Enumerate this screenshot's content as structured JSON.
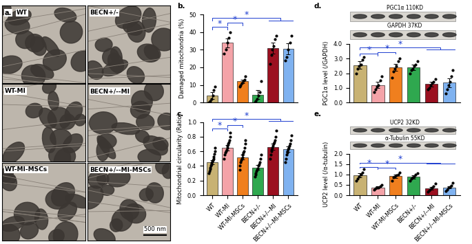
{
  "micrographs": {
    "label": "a.",
    "panels": [
      "WT",
      "BECN+/-",
      "WT-MI",
      "BECN+/--MI",
      "WT-MI-MSCs",
      "BECN+/--MI-MSCs"
    ],
    "scale_bar": "500 nm"
  },
  "chart_data": [
    {
      "type": "bar",
      "title": "b.",
      "y_label": "Damaged mitochondria (%)",
      "tick_labels": "y",
      "values": [
        4,
        34,
        12,
        4.5,
        31,
        30.5
      ],
      "errors": [
        2,
        2.5,
        1,
        2.5,
        3,
        3
      ],
      "points": [
        [
          0,
          1,
          2,
          4,
          7,
          9
        ],
        [
          28,
          30,
          34,
          37,
          40
        ],
        [
          9,
          10,
          11,
          12,
          13,
          15
        ],
        [
          0,
          1,
          2,
          4,
          6,
          12
        ],
        [
          22,
          27,
          30,
          32,
          36,
          38
        ],
        [
          24,
          26,
          30,
          34,
          38
        ]
      ],
      "colors": [
        "#c8b273",
        "#f4a3a8",
        "#f07f1e",
        "#2fa84f",
        "#9b1020",
        "#7fb2f0"
      ],
      "ylim": [
        0,
        50
      ],
      "yticks": [
        0,
        10,
        20,
        30,
        40,
        50
      ],
      "significance": [
        {
          "label": "*",
          "from": [
            0
          ],
          "to": [
            1
          ]
        },
        {
          "label": "*",
          "from": [
            1
          ],
          "to": [
            2
          ]
        },
        {
          "label": "*",
          "from": [
            0
          ],
          "to": [
            4,
            5
          ]
        }
      ]
    },
    {
      "type": "bar",
      "title": "c.",
      "y_label": "Mitochondrial circularity (Ratio)",
      "categories": [
        "WT",
        "WT-MI",
        "WT-MI-MSCs",
        "BECN+/-",
        "BECN+/--MI",
        "BECN+/--MI-MSCs"
      ],
      "values": [
        0.45,
        0.65,
        0.52,
        0.38,
        0.66,
        0.63
      ],
      "errors": [
        0.03,
        0.04,
        0.03,
        0.03,
        0.04,
        0.04
      ],
      "points": [
        [
          0.3,
          0.33,
          0.36,
          0.38,
          0.4,
          0.42,
          0.44,
          0.46,
          0.48,
          0.5,
          0.53,
          0.56,
          0.6,
          0.65
        ],
        [
          0.5,
          0.55,
          0.58,
          0.6,
          0.62,
          0.65,
          0.68,
          0.7,
          0.72,
          0.75,
          0.8,
          0.85
        ],
        [
          0.35,
          0.4,
          0.45,
          0.48,
          0.5,
          0.52,
          0.55,
          0.58,
          0.6,
          0.65,
          0.7,
          0.75
        ],
        [
          0.25,
          0.28,
          0.3,
          0.33,
          0.35,
          0.37,
          0.4,
          0.42,
          0.45,
          0.5,
          0.55
        ],
        [
          0.5,
          0.55,
          0.6,
          0.62,
          0.65,
          0.68,
          0.7,
          0.72,
          0.75,
          0.8,
          0.88
        ],
        [
          0.45,
          0.5,
          0.55,
          0.58,
          0.6,
          0.63,
          0.65,
          0.68,
          0.7,
          0.75,
          0.82
        ]
      ],
      "colors": [
        "#c8b273",
        "#f4a3a8",
        "#f07f1e",
        "#2fa84f",
        "#9b1020",
        "#7fb2f0"
      ],
      "ylim": [
        0,
        1.0
      ],
      "yticks": [
        {
          "value": 0,
          "label": "0.0"
        },
        {
          "value": 0.2,
          "label": "0.2"
        },
        {
          "value": 0.4,
          "label": "0.4"
        },
        {
          "value": 0.6,
          "label": "0.6"
        },
        {
          "value": 0.8,
          "label": "0.8"
        },
        {
          "value": 1.0,
          "label": "1.0"
        }
      ],
      "significance": [
        {
          "label": "*",
          "from": [
            0
          ],
          "to": [
            1
          ]
        },
        {
          "label": "*",
          "from": [
            1
          ],
          "to": [
            2
          ]
        },
        {
          "label": "*",
          "from": [
            0
          ],
          "to": [
            4,
            5
          ]
        }
      ]
    },
    {
      "type": "bar",
      "title": "d.",
      "y_label": "PGC1α level (/GAPDH)",
      "tick_labels": "y",
      "blots": [
        "PGC1α 110KD",
        "GAPDH 37KD"
      ],
      "values": [
        2.55,
        1.2,
        2.4,
        2.4,
        1.25,
        1.35
      ],
      "errors": [
        0.25,
        0.2,
        0.25,
        0.2,
        0.15,
        0.3
      ],
      "points": [
        [
          2.0,
          2.3,
          2.5,
          2.6,
          2.9,
          3.1
        ],
        [
          0.7,
          0.9,
          1.1,
          1.2,
          1.5,
          1.8
        ],
        [
          1.7,
          2.1,
          2.3,
          2.5,
          2.8,
          3.0
        ],
        [
          2.0,
          2.2,
          2.3,
          2.5,
          2.6,
          2.8
        ],
        [
          0.9,
          1.0,
          1.2,
          1.3,
          1.4,
          1.6
        ],
        [
          0.6,
          0.9,
          1.2,
          1.4,
          1.8,
          2.2
        ]
      ],
      "colors": [
        "#c8b273",
        "#f4a3a8",
        "#f07f1e",
        "#2fa84f",
        "#9b1020",
        "#7fb2f0"
      ],
      "ylim": [
        0,
        4.0
      ],
      "yticks": [
        {
          "value": 0,
          "label": "0.0"
        },
        {
          "value": 1.0,
          "label": "1.0"
        },
        {
          "value": 2.0,
          "label": "2.0"
        },
        {
          "value": 3.0,
          "label": "3.0"
        },
        {
          "value": 4.0,
          "label": "4.0"
        }
      ],
      "significance": [
        {
          "label": "*",
          "from": [
            0
          ],
          "to": [
            1
          ]
        },
        {
          "label": "*",
          "from": [
            1
          ],
          "to": [
            2
          ]
        },
        {
          "label": "*",
          "from": [
            0
          ],
          "to": [
            4,
            5
          ]
        }
      ]
    },
    {
      "type": "bar",
      "title": "e.",
      "y_label": "UCP2 level (/α-tubulin)",
      "blots": [
        "UCP2 32KD",
        "α-Tubulin 55KD"
      ],
      "categories": [
        "WT",
        "WT-MI",
        "WT-MI-MSCs",
        "BECN+/-",
        "BECN+/--MI",
        "BECN+/--MI-MSCs"
      ],
      "values": [
        0.95,
        0.38,
        0.92,
        0.88,
        0.33,
        0.38
      ],
      "errors": [
        0.1,
        0.04,
        0.08,
        0.07,
        0.07,
        0.06
      ],
      "points": [
        [
          0.7,
          0.8,
          0.9,
          1.0,
          1.1,
          1.25
        ],
        [
          0.28,
          0.32,
          0.35,
          0.38,
          0.42,
          0.5
        ],
        [
          0.7,
          0.85,
          0.9,
          0.95,
          1.0,
          1.1
        ],
        [
          0.7,
          0.8,
          0.85,
          0.9,
          1.0,
          1.05
        ],
        [
          0.15,
          0.22,
          0.3,
          0.35,
          0.42,
          0.55
        ],
        [
          0.2,
          0.28,
          0.35,
          0.4,
          0.45,
          0.6
        ]
      ],
      "colors": [
        "#c8b273",
        "#f4a3a8",
        "#f07f1e",
        "#2fa84f",
        "#9b1020",
        "#7fb2f0"
      ],
      "ylim": [
        0,
        2.0
      ],
      "yticks": [
        {
          "value": 0,
          "label": "0.0"
        },
        {
          "value": 0.5,
          "label": "0.5"
        },
        {
          "value": 1.0,
          "label": "1.0"
        },
        {
          "value": 1.5,
          "label": "1.5"
        },
        {
          "value": 2.0,
          "label": "2.0"
        }
      ],
      "significance": [
        {
          "label": "*",
          "from": [
            0
          ],
          "to": [
            1
          ]
        },
        {
          "label": "*",
          "from": [
            1
          ],
          "to": [
            2
          ]
        },
        {
          "label": "*",
          "from": [
            0
          ],
          "to": [
            4,
            5
          ]
        }
      ]
    }
  ]
}
